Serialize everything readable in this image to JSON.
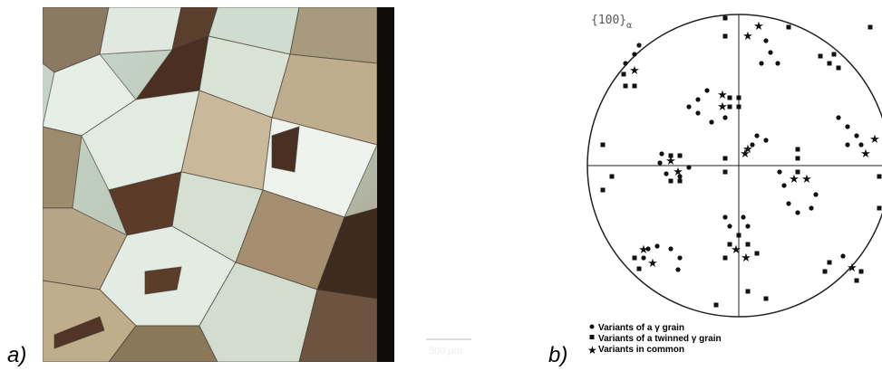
{
  "panel_a": {
    "label": "a)",
    "scale_bar": "500 µm"
  },
  "panel_b": {
    "label": "b)",
    "pole_figure_label": "{100}",
    "pole_figure_subscript": "α",
    "legend": [
      "Variants of a γ grain",
      "Variants of a twinned γ grain",
      "Variants in common"
    ]
  }
}
